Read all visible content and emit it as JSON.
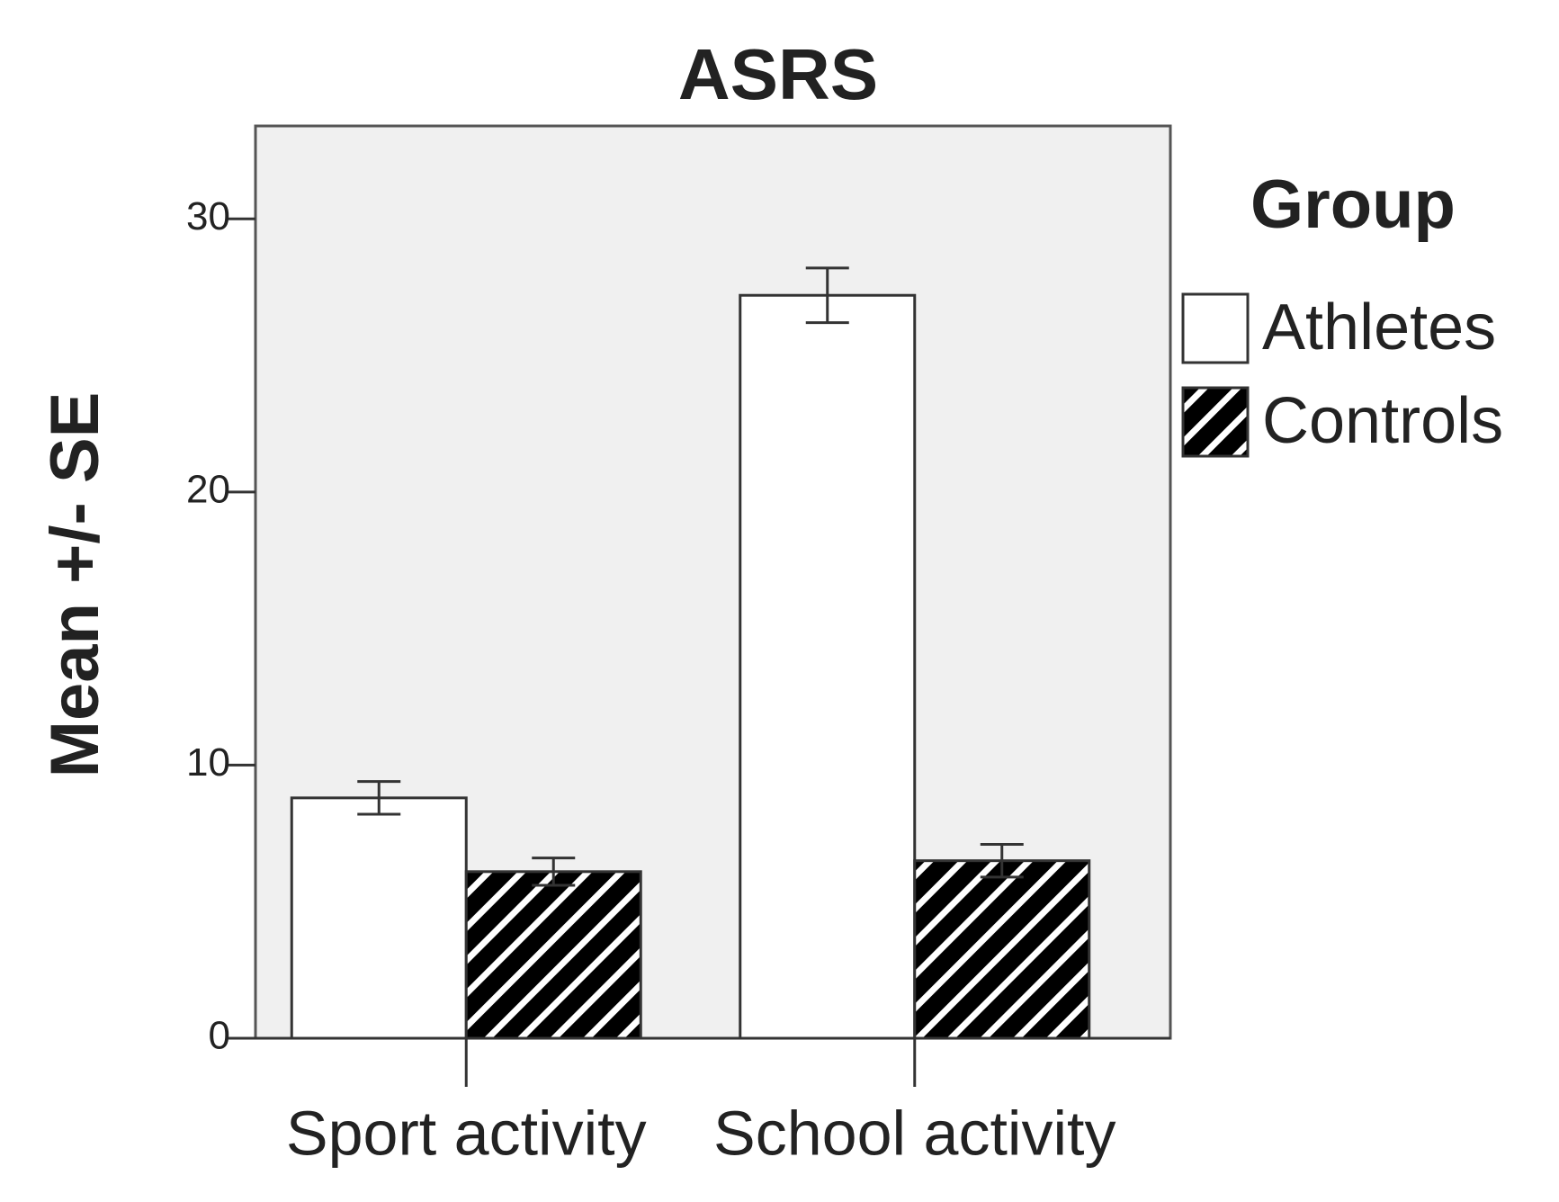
{
  "chart_data": {
    "type": "bar",
    "title": "ASRS",
    "ylabel": "Mean +/- SE",
    "categories": [
      "Sport activity",
      "School activity"
    ],
    "legend_title": "Group",
    "legend": "right",
    "series": [
      {
        "name": "Athletes",
        "color": "#ffffff",
        "values": [
          8.8,
          27.2
        ],
        "errors": [
          0.6,
          1.0
        ]
      },
      {
        "name": "Controls",
        "color": "#000000",
        "hatch": true,
        "values": [
          6.1,
          6.5
        ],
        "errors": [
          0.5,
          0.6
        ]
      }
    ],
    "ylim": [
      0,
      33.4
    ],
    "yticks": [
      0,
      10,
      20,
      30
    ],
    "background": "#f0f0f0"
  }
}
